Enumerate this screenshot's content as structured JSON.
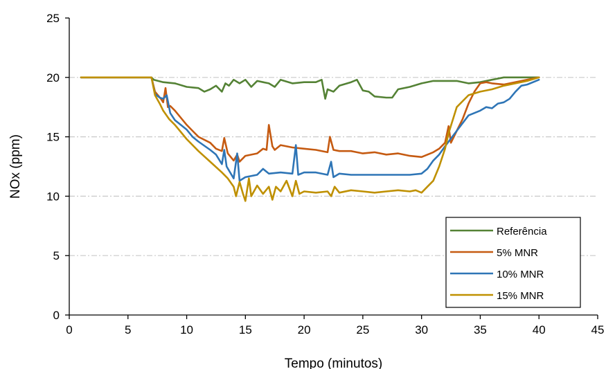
{
  "chart_data": {
    "type": "line",
    "title": "",
    "xlabel": "Tempo (minutos)",
    "ylabel": "NOx (ppm)",
    "xlim": [
      0,
      45
    ],
    "ylim": [
      0,
      25
    ],
    "xticks": [
      0,
      5,
      10,
      15,
      20,
      25,
      30,
      35,
      40,
      45
    ],
    "yticks": [
      0,
      5,
      10,
      15,
      20,
      25
    ],
    "grid": "horizontal dash-dot at 5, 10, 15, 20",
    "legend_position": "bottom-right",
    "series": [
      {
        "name": "Referência",
        "color": "#548235",
        "x": [
          1,
          7,
          7.2,
          8,
          9,
          10,
          11,
          11.5,
          12,
          12.5,
          13,
          13.3,
          13.6,
          14,
          14.5,
          15,
          15.5,
          16,
          17,
          17.5,
          18,
          19,
          20,
          21,
          21.5,
          21.8,
          22,
          22.5,
          23,
          24,
          24.5,
          25,
          25.5,
          26,
          27,
          27.5,
          28,
          29,
          30,
          31,
          32,
          33,
          34,
          35,
          36,
          37,
          38,
          39,
          40
        ],
        "y": [
          20,
          20,
          19.8,
          19.6,
          19.5,
          19.2,
          19.1,
          18.8,
          19.0,
          19.3,
          18.8,
          19.5,
          19.3,
          19.8,
          19.5,
          19.8,
          19.2,
          19.7,
          19.5,
          19.2,
          19.8,
          19.5,
          19.6,
          19.6,
          19.8,
          18.2,
          19.0,
          18.8,
          19.3,
          19.6,
          19.8,
          18.9,
          18.8,
          18.4,
          18.3,
          18.3,
          19.0,
          19.2,
          19.5,
          19.7,
          19.7,
          19.7,
          19.5,
          19.6,
          19.8,
          20.0,
          20.0,
          20.0,
          20.0
        ]
      },
      {
        "name": "5% MNR",
        "color": "#C55A11",
        "x": [
          1,
          7,
          7.3,
          7.8,
          8,
          8.2,
          8.4,
          8.6,
          9,
          10,
          10.5,
          11,
          12,
          12.5,
          13,
          13.2,
          13.5,
          14,
          14.3,
          14.5,
          15,
          16,
          16.5,
          16.8,
          17,
          17.3,
          17.5,
          18,
          19,
          20,
          21,
          22,
          22.2,
          22.5,
          23,
          24,
          25,
          26,
          27,
          28,
          29,
          30,
          31,
          31.5,
          32,
          32.3,
          32.5,
          33,
          33.5,
          34,
          34.5,
          35,
          35.5,
          36,
          37,
          38,
          39,
          40
        ],
        "y": [
          20,
          20,
          18.8,
          18.2,
          17.9,
          19.1,
          17.5,
          17.6,
          17.2,
          16.0,
          15.5,
          15.0,
          14.5,
          14.0,
          13.8,
          14.9,
          13.6,
          13.0,
          13.5,
          12.9,
          13.4,
          13.6,
          14.0,
          13.9,
          16.0,
          14.2,
          13.9,
          14.3,
          14.1,
          14.0,
          13.9,
          13.7,
          15.0,
          13.9,
          13.8,
          13.8,
          13.6,
          13.7,
          13.5,
          13.6,
          13.4,
          13.3,
          13.7,
          14.0,
          14.5,
          15.9,
          14.5,
          15.5,
          16.5,
          17.8,
          18.8,
          19.5,
          19.6,
          19.5,
          19.4,
          19.6,
          19.8,
          20.0
        ]
      },
      {
        "name": "10% MNR",
        "color": "#2E75B6",
        "x": [
          1,
          7,
          7.3,
          7.7,
          8,
          8.3,
          8.6,
          9,
          10,
          10.5,
          11,
          12,
          12.5,
          13,
          13.2,
          13.4,
          14,
          14.3,
          14.5,
          15,
          16,
          16.5,
          17,
          18,
          19,
          19.3,
          19.5,
          20,
          21,
          22,
          22.3,
          22.5,
          23,
          24,
          25,
          26,
          27,
          28,
          29,
          30,
          30.5,
          31,
          31.5,
          32,
          33,
          34,
          35,
          35.5,
          36,
          36.5,
          37,
          37.5,
          38,
          38.5,
          39,
          40
        ],
        "y": [
          20,
          20,
          18.6,
          18.3,
          18.2,
          18.5,
          17.0,
          16.4,
          15.6,
          15.0,
          14.6,
          13.9,
          13.5,
          12.7,
          13.9,
          12.5,
          11.5,
          13.6,
          11.3,
          11.6,
          11.8,
          12.3,
          11.9,
          12.0,
          11.9,
          14.3,
          11.8,
          12.0,
          12.0,
          11.8,
          12.9,
          11.6,
          11.9,
          11.8,
          11.8,
          11.8,
          11.8,
          11.8,
          11.8,
          11.9,
          12.3,
          13.0,
          13.5,
          14.2,
          15.5,
          16.8,
          17.2,
          17.5,
          17.4,
          17.8,
          17.9,
          18.2,
          18.8,
          19.3,
          19.4,
          19.8
        ]
      },
      {
        "name": "15% MNR",
        "color": "#BF9000",
        "x": [
          1,
          7,
          7.3,
          7.7,
          8,
          8.5,
          9,
          10,
          11,
          12,
          13,
          13.5,
          14,
          14.2,
          14.5,
          14.8,
          15,
          15.3,
          15.5,
          16,
          16.5,
          17,
          17.3,
          17.6,
          18,
          18.5,
          19,
          19.3,
          19.6,
          20,
          21,
          22,
          22.3,
          22.6,
          23,
          24,
          25,
          26,
          27,
          28,
          29,
          29.5,
          30,
          30.5,
          31,
          31.5,
          32,
          32.3,
          33,
          34,
          35,
          36,
          37,
          38,
          39,
          40
        ],
        "y": [
          20,
          20,
          18.5,
          17.8,
          17.2,
          16.5,
          16.0,
          14.8,
          13.8,
          12.9,
          12.0,
          11.5,
          10.8,
          10.0,
          11.2,
          10.2,
          9.6,
          11.5,
          10.0,
          10.9,
          10.2,
          10.8,
          9.7,
          10.8,
          10.4,
          11.3,
          10.0,
          11.3,
          10.2,
          10.4,
          10.3,
          10.4,
          10.0,
          10.8,
          10.3,
          10.5,
          10.4,
          10.3,
          10.4,
          10.5,
          10.4,
          10.5,
          10.3,
          10.8,
          11.3,
          12.5,
          14.0,
          15.3,
          17.5,
          18.5,
          18.8,
          19.0,
          19.3,
          19.5,
          19.7,
          20.0
        ]
      }
    ]
  }
}
